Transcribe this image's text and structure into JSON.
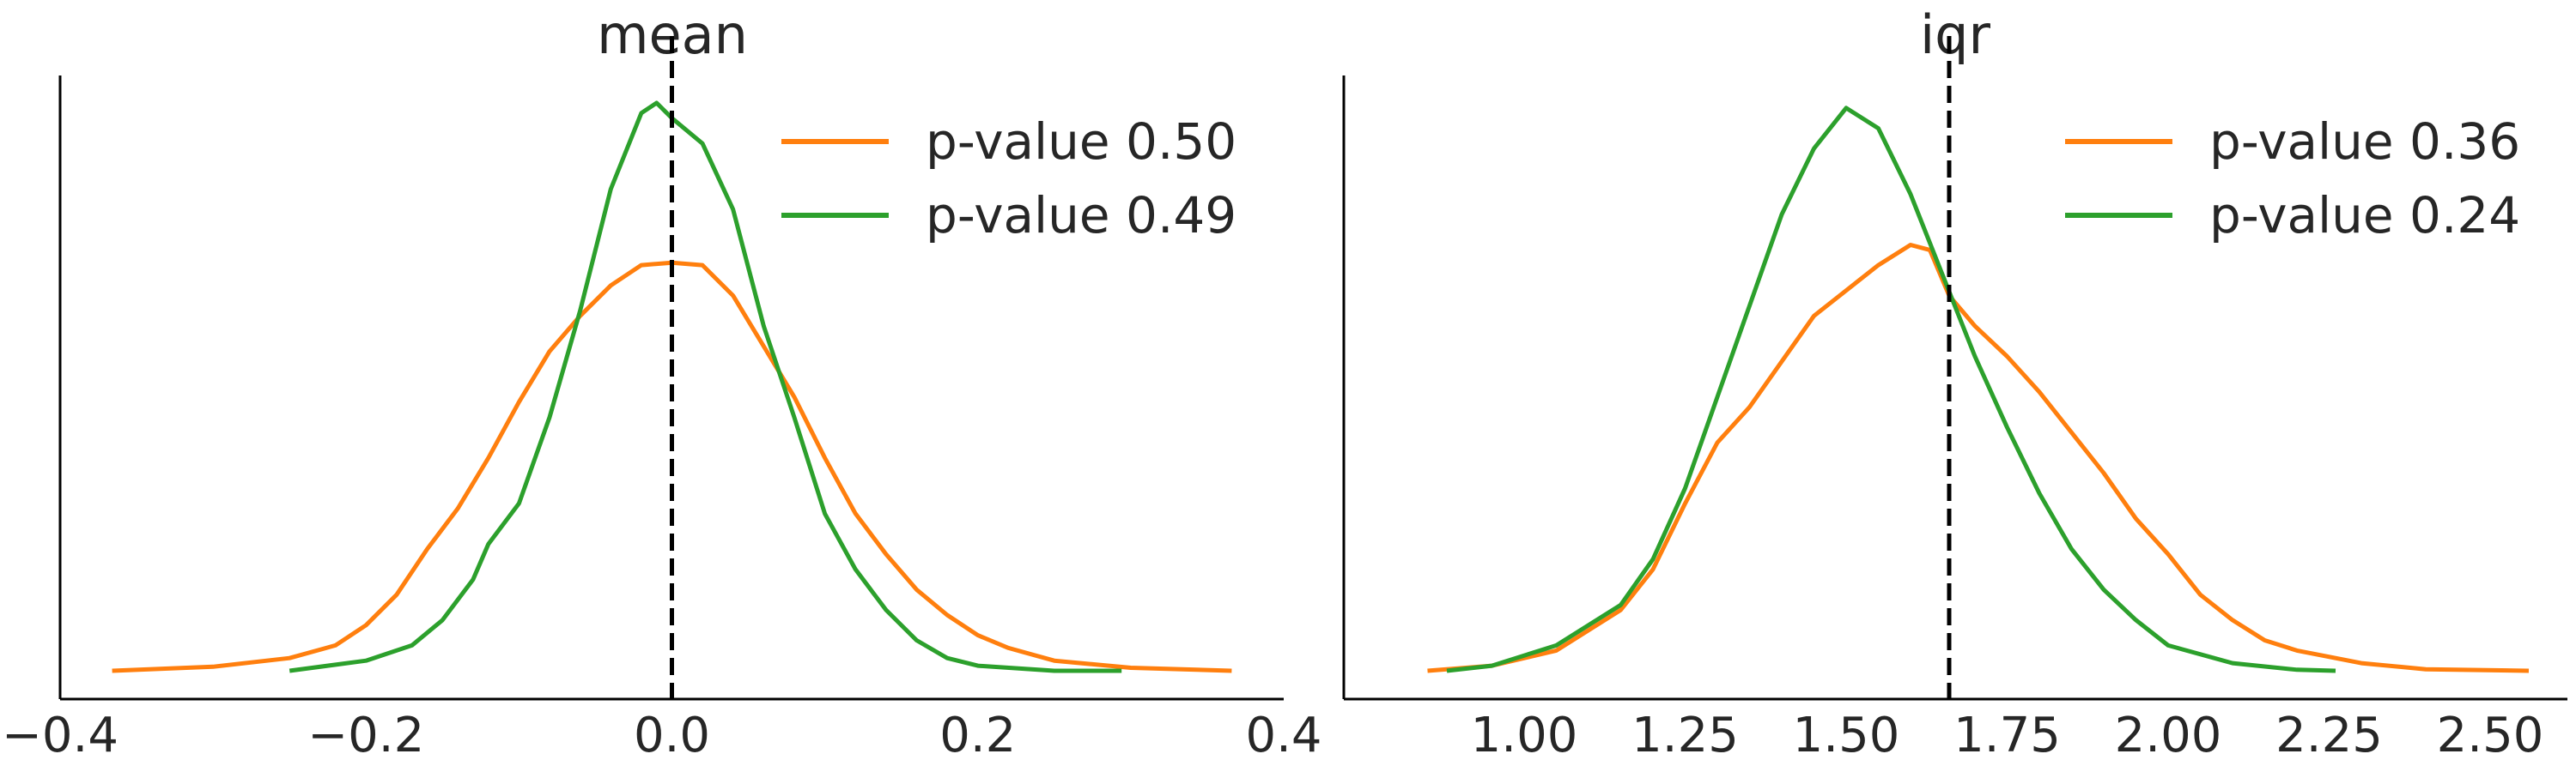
{
  "chart_data": [
    {
      "type": "line",
      "title": "mean",
      "xlabel": "",
      "ylabel": "",
      "xlim": [
        -0.4,
        0.4
      ],
      "xticks": [
        -0.4,
        -0.2,
        0.0,
        0.2,
        0.4
      ],
      "xtick_labels": [
        "−0.4",
        "−0.2",
        "0.0",
        "0.2",
        "0.4"
      ],
      "reference_line": {
        "x": 0.0,
        "style": "dashed",
        "color": "#000000"
      },
      "yticks_visible": false,
      "legend_position": "top-right",
      "series": [
        {
          "name": "p-value 0.50",
          "color": "#ff7f0e",
          "x": [
            -0.366,
            -0.3,
            -0.25,
            -0.22,
            -0.2,
            -0.18,
            -0.16,
            -0.14,
            -0.12,
            -0.1,
            -0.08,
            -0.06,
            -0.04,
            -0.02,
            0.0,
            0.02,
            0.04,
            0.06,
            0.08,
            0.1,
            0.12,
            0.14,
            0.16,
            0.18,
            0.2,
            0.22,
            0.25,
            0.3,
            0.366
          ],
          "y": [
            0.0,
            0.008,
            0.025,
            0.05,
            0.09,
            0.15,
            0.24,
            0.32,
            0.42,
            0.53,
            0.63,
            0.7,
            0.76,
            0.8,
            0.805,
            0.8,
            0.74,
            0.64,
            0.54,
            0.42,
            0.31,
            0.23,
            0.16,
            0.11,
            0.07,
            0.045,
            0.02,
            0.006,
            0.0
          ]
        },
        {
          "name": "p-value 0.49",
          "color": "#2ca02c",
          "x": [
            -0.25,
            -0.2,
            -0.17,
            -0.15,
            -0.13,
            -0.12,
            -0.1,
            -0.08,
            -0.06,
            -0.04,
            -0.02,
            -0.01,
            0.0,
            0.02,
            0.04,
            0.06,
            0.08,
            0.1,
            0.12,
            0.14,
            0.16,
            0.18,
            0.2,
            0.25,
            0.294
          ],
          "y": [
            0.0,
            0.02,
            0.05,
            0.1,
            0.18,
            0.25,
            0.33,
            0.5,
            0.71,
            0.95,
            1.1,
            1.12,
            1.09,
            1.04,
            0.91,
            0.68,
            0.5,
            0.31,
            0.2,
            0.12,
            0.06,
            0.025,
            0.01,
            0.0,
            0.0
          ]
        }
      ]
    },
    {
      "type": "line",
      "title": "iqr",
      "xlabel": "",
      "ylabel": "",
      "xlim": [
        0.72,
        2.62
      ],
      "xticks": [
        1.0,
        1.25,
        1.5,
        1.75,
        2.0,
        2.25,
        2.5
      ],
      "xtick_labels": [
        "1.00",
        "1.25",
        "1.50",
        "1.75",
        "2.00",
        "2.25",
        "2.50"
      ],
      "reference_line": {
        "x": 1.66,
        "style": "dashed",
        "color": "#000000"
      },
      "yticks_visible": false,
      "legend_position": "top-right",
      "series": [
        {
          "name": "p-value 0.36",
          "color": "#ff7f0e",
          "x": [
            0.85,
            0.95,
            1.05,
            1.15,
            1.2,
            1.25,
            1.3,
            1.35,
            1.4,
            1.45,
            1.5,
            1.55,
            1.6,
            1.63,
            1.66,
            1.7,
            1.75,
            1.8,
            1.85,
            1.9,
            1.95,
            2.0,
            2.05,
            2.1,
            2.15,
            2.2,
            2.3,
            2.4,
            2.56
          ],
          "y": [
            0.0,
            0.01,
            0.04,
            0.12,
            0.2,
            0.33,
            0.45,
            0.52,
            0.61,
            0.7,
            0.75,
            0.8,
            0.84,
            0.83,
            0.74,
            0.68,
            0.62,
            0.55,
            0.47,
            0.39,
            0.3,
            0.23,
            0.15,
            0.1,
            0.06,
            0.04,
            0.015,
            0.003,
            0.0
          ]
        },
        {
          "name": "p-value 0.24",
          "color": "#2ca02c",
          "x": [
            0.88,
            0.95,
            1.05,
            1.15,
            1.2,
            1.25,
            1.3,
            1.35,
            1.4,
            1.45,
            1.5,
            1.55,
            1.6,
            1.65,
            1.7,
            1.75,
            1.8,
            1.85,
            1.9,
            1.95,
            2.0,
            2.1,
            2.2,
            2.26
          ],
          "y": [
            0.0,
            0.01,
            0.05,
            0.13,
            0.22,
            0.36,
            0.54,
            0.72,
            0.9,
            1.03,
            1.11,
            1.07,
            0.94,
            0.78,
            0.62,
            0.48,
            0.35,
            0.24,
            0.16,
            0.1,
            0.05,
            0.015,
            0.002,
            0.0
          ]
        }
      ]
    }
  ]
}
